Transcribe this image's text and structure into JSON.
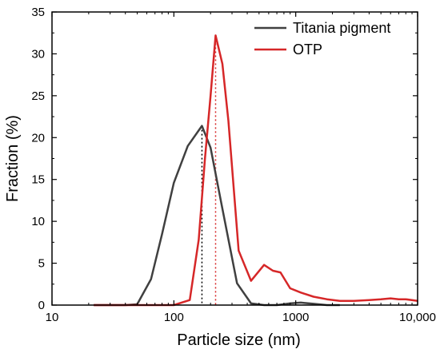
{
  "chart_data": {
    "type": "line",
    "xlabel": "Particle size (nm)",
    "ylabel": "Fraction (%)",
    "xscale": "log",
    "xlim": [
      10,
      10000
    ],
    "ylim": [
      0,
      35
    ],
    "x_ticks": [
      10,
      100,
      1000,
      10000
    ],
    "x_tick_labels": [
      "10",
      "100",
      "1000",
      "10,000"
    ],
    "y_ticks": [
      0,
      5,
      10,
      15,
      20,
      25,
      30,
      35
    ],
    "y_tick_labels": [
      "0",
      "5",
      "10",
      "15",
      "20",
      "25",
      "30",
      "35"
    ],
    "grid": false,
    "legend_position": "top-right",
    "series": [
      {
        "name": "Titania pigment",
        "color": "#404040",
        "x": [
          22,
          40,
          50,
          65,
          80,
          100,
          130,
          170,
          200,
          250,
          330,
          430,
          550,
          700,
          900,
          1100,
          1400,
          1800,
          2300
        ],
        "y": [
          0,
          0,
          0.1,
          3.1,
          8.5,
          14.6,
          19.0,
          21.4,
          18.8,
          11.5,
          2.6,
          0.2,
          0,
          0,
          0.2,
          0.3,
          0.15,
          0,
          0
        ]
      },
      {
        "name": "OTP",
        "color": "#d62728",
        "x": [
          22,
          80,
          100,
          135,
          160,
          180,
          200,
          220,
          250,
          280,
          340,
          430,
          550,
          650,
          750,
          900,
          1100,
          1400,
          1800,
          2300,
          3000,
          4000,
          5000,
          6000,
          7000,
          8000,
          10000
        ],
        "y": [
          0,
          0,
          0,
          0.6,
          7.8,
          17.5,
          25.0,
          32.2,
          28.8,
          22.0,
          6.5,
          2.9,
          4.8,
          4.1,
          3.9,
          2.0,
          1.5,
          1.0,
          0.7,
          0.5,
          0.5,
          0.6,
          0.7,
          0.8,
          0.7,
          0.7,
          0.5
        ]
      }
    ],
    "markers": [
      {
        "series": "Titania pigment",
        "x": 170,
        "y": 21.4,
        "color": "#000000"
      },
      {
        "series": "OTP",
        "x": 220,
        "y": 32.2,
        "color": "#d62728"
      }
    ]
  }
}
